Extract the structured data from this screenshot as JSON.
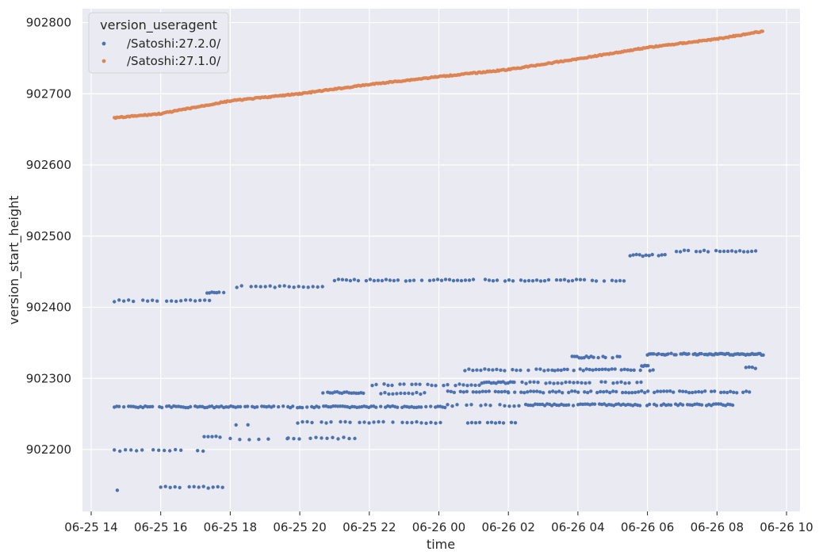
{
  "chart_data": {
    "type": "scatter",
    "xlabel": "time",
    "ylabel": "version_start_height",
    "x_is_time": true,
    "xlim": [
      "2025-06-25T14:30",
      "2025-06-26T10:15"
    ],
    "ylim": [
      902110,
      902815
    ],
    "x_ticks": [
      {
        "at": "2025-06-25T14:00",
        "label": "06-25 14"
      },
      {
        "at": "2025-06-25T16:00",
        "label": "06-25 16"
      },
      {
        "at": "2025-06-25T18:00",
        "label": "06-25 18"
      },
      {
        "at": "2025-06-25T20:00",
        "label": "06-25 20"
      },
      {
        "at": "2025-06-25T22:00",
        "label": "06-25 22"
      },
      {
        "at": "2025-06-26T00:00",
        "label": "06-26 00"
      },
      {
        "at": "2025-06-26T02:00",
        "label": "06-26 02"
      },
      {
        "at": "2025-06-26T04:00",
        "label": "06-26 04"
      },
      {
        "at": "2025-06-26T06:00",
        "label": "06-26 06"
      },
      {
        "at": "2025-06-26T08:00",
        "label": "06-26 08"
      },
      {
        "at": "2025-06-26T10:00",
        "label": "06-26 10"
      }
    ],
    "y_ticks": [
      {
        "at": 902200,
        "label": "902200"
      },
      {
        "at": 902300,
        "label": "902300"
      },
      {
        "at": 902400,
        "label": "902400"
      },
      {
        "at": 902500,
        "label": "902500"
      },
      {
        "at": 902600,
        "label": "902600"
      },
      {
        "at": 902700,
        "label": "902700"
      },
      {
        "at": 902800,
        "label": "902800"
      }
    ],
    "grid": true,
    "legend": {
      "title": "version_useragent",
      "placement": "top-left"
    },
    "series": [
      {
        "name": "/Satoshi:27.2.0/",
        "color": "#4c72b0",
        "bands": [
          {
            "start": "2025-06-25T14:45",
            "end": "2025-06-25T15:10",
            "y": 902143,
            "step": 15
          },
          {
            "start": "2025-06-25T16:00",
            "end": "2025-06-25T17:50",
            "y": 902147,
            "step": 6
          },
          {
            "start": "2025-06-25T14:40",
            "end": "2025-06-25T17:15",
            "y": 902199,
            "step": 7
          },
          {
            "start": "2025-06-25T17:15",
            "end": "2025-06-25T17:45",
            "y": 902218,
            "step": 5
          },
          {
            "start": "2025-06-25T18:00",
            "end": "2025-06-25T19:40",
            "y": 902215,
            "step": 12
          },
          {
            "start": "2025-06-25T19:40",
            "end": "2025-06-25T21:40",
            "y": 902216,
            "step": 7
          },
          {
            "start": "2025-06-25T18:10",
            "end": "2025-06-25T19:00",
            "y": 902234,
            "step": 15
          },
          {
            "start": "2025-06-25T19:40",
            "end": "2025-06-26T00:10",
            "y": 902238,
            "step": 6
          },
          {
            "start": "2025-06-26T00:50",
            "end": "2025-06-26T02:15",
            "y": 902238,
            "step": 5
          },
          {
            "start": "2025-06-25T14:40",
            "end": "2025-06-26T00:15",
            "y": 902260,
            "step": 3
          },
          {
            "start": "2025-06-26T00:15",
            "end": "2025-06-26T02:30",
            "y": 902262,
            "step": 6
          },
          {
            "start": "2025-06-26T02:30",
            "end": "2025-06-26T08:30",
            "y": 902263,
            "step": 3
          },
          {
            "start": "2025-06-25T20:40",
            "end": "2025-06-25T21:50",
            "y": 902280,
            "step": 3
          },
          {
            "start": "2025-06-25T22:20",
            "end": "2025-06-25T23:40",
            "y": 902279,
            "step": 5
          },
          {
            "start": "2025-06-26T00:10",
            "end": "2025-06-26T02:00",
            "y": 902281,
            "step": 4
          },
          {
            "start": "2025-06-26T02:00",
            "end": "2025-06-26T09:00",
            "y": 902281,
            "step": 4
          },
          {
            "start": "2025-06-25T22:05",
            "end": "2025-06-26T01:10",
            "y": 902291,
            "step": 5
          },
          {
            "start": "2025-06-26T01:10",
            "end": "2025-06-26T02:10",
            "y": 902294,
            "step": 3
          },
          {
            "start": "2025-06-26T02:10",
            "end": "2025-06-26T05:50",
            "y": 902294,
            "step": 5
          },
          {
            "start": "2025-06-26T00:45",
            "end": "2025-06-26T03:20",
            "y": 902312,
            "step": 5
          },
          {
            "start": "2025-06-26T03:20",
            "end": "2025-06-26T06:10",
            "y": 902312,
            "step": 4
          },
          {
            "start": "2025-06-26T03:50",
            "end": "2025-06-26T05:15",
            "y": 902330,
            "step": 3
          },
          {
            "start": "2025-06-26T06:00",
            "end": "2025-06-26T09:20",
            "y": 902334,
            "step": 2
          },
          {
            "start": "2025-06-26T05:50",
            "end": "2025-06-26T06:05",
            "y": 902318,
            "step": 2
          },
          {
            "start": "2025-06-26T08:50",
            "end": "2025-06-26T09:10",
            "y": 902315,
            "step": 4
          },
          {
            "start": "2025-06-25T14:40",
            "end": "2025-06-25T17:30",
            "y": 902409,
            "step": 6
          },
          {
            "start": "2025-06-25T17:20",
            "end": "2025-06-25T17:50",
            "y": 902420,
            "step": 3
          },
          {
            "start": "2025-06-25T17:55",
            "end": "2025-06-25T20:40",
            "y": 902429,
            "step": 6
          },
          {
            "start": "2025-06-25T21:00",
            "end": "2025-06-26T05:20",
            "y": 902438,
            "step": 5
          },
          {
            "start": "2025-06-26T05:30",
            "end": "2025-06-26T06:40",
            "y": 902473,
            "step": 4
          },
          {
            "start": "2025-06-26T06:50",
            "end": "2025-06-26T09:20",
            "y": 902479,
            "step": 5
          }
        ]
      },
      {
        "name": "/Satoshi:27.1.0/",
        "color": "#dd8452",
        "start": "2025-06-25T14:40",
        "end": "2025-06-26T09:20",
        "path": [
          {
            "x": "2025-06-25T14:40",
            "y": 902666
          },
          {
            "x": "2025-06-25T16:00",
            "y": 902672
          },
          {
            "x": "2025-06-25T18:00",
            "y": 902690
          },
          {
            "x": "2025-06-25T20:00",
            "y": 902700
          },
          {
            "x": "2025-06-25T22:00",
            "y": 902713
          },
          {
            "x": "2025-06-26T00:00",
            "y": 902724
          },
          {
            "x": "2025-06-26T02:00",
            "y": 902734
          },
          {
            "x": "2025-06-26T04:00",
            "y": 902749
          },
          {
            "x": "2025-06-26T06:00",
            "y": 902765
          },
          {
            "x": "2025-06-26T08:00",
            "y": 902777
          },
          {
            "x": "2025-06-26T09:20",
            "y": 902788
          }
        ]
      }
    ]
  }
}
